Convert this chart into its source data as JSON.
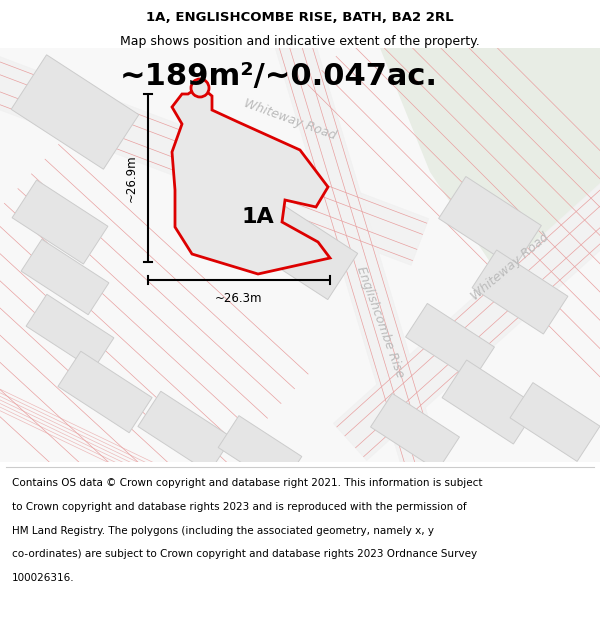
{
  "title_line1": "1A, ENGLISHCOMBE RISE, BATH, BA2 2RL",
  "title_line2": "Map shows position and indicative extent of the property.",
  "area_text": "~189m²/~0.047ac.",
  "label_1A": "1A",
  "dim_height": "~26.9m",
  "dim_width": "~26.3m",
  "road_label_whiteway1": "Whiteway Road",
  "road_label_whiteway2": "Whiteway Road",
  "road_label_englishcombe": "Englishcombe Rise",
  "footer_lines": [
    "Contains OS data © Crown copyright and database right 2021. This information is subject",
    "to Crown copyright and database rights 2023 and is reproduced with the permission of",
    "HM Land Registry. The polygons (including the associated geometry, namely x, y",
    "co-ordinates) are subject to Crown copyright and database rights 2023 Ordnance Survey",
    "100026316."
  ],
  "bg_color": "#ffffff",
  "map_bg": "#f9f9f9",
  "road_fill": "#f0f0f0",
  "road_line_color": "#e8a0a0",
  "road_line_color2": "#dda0a0",
  "building_color": "#e5e5e5",
  "building_edge_color": "#cccccc",
  "plot_fill": "#e8e8e8",
  "plot_edge": "#dd0000",
  "green_color": "#e8ede5",
  "title_fontsize": 9.5,
  "subtitle_fontsize": 9.0,
  "area_fontsize": 22,
  "label_fontsize": 16,
  "road_label_fontsize": 9,
  "dim_fontsize": 8.5,
  "footer_fontsize": 7.5
}
